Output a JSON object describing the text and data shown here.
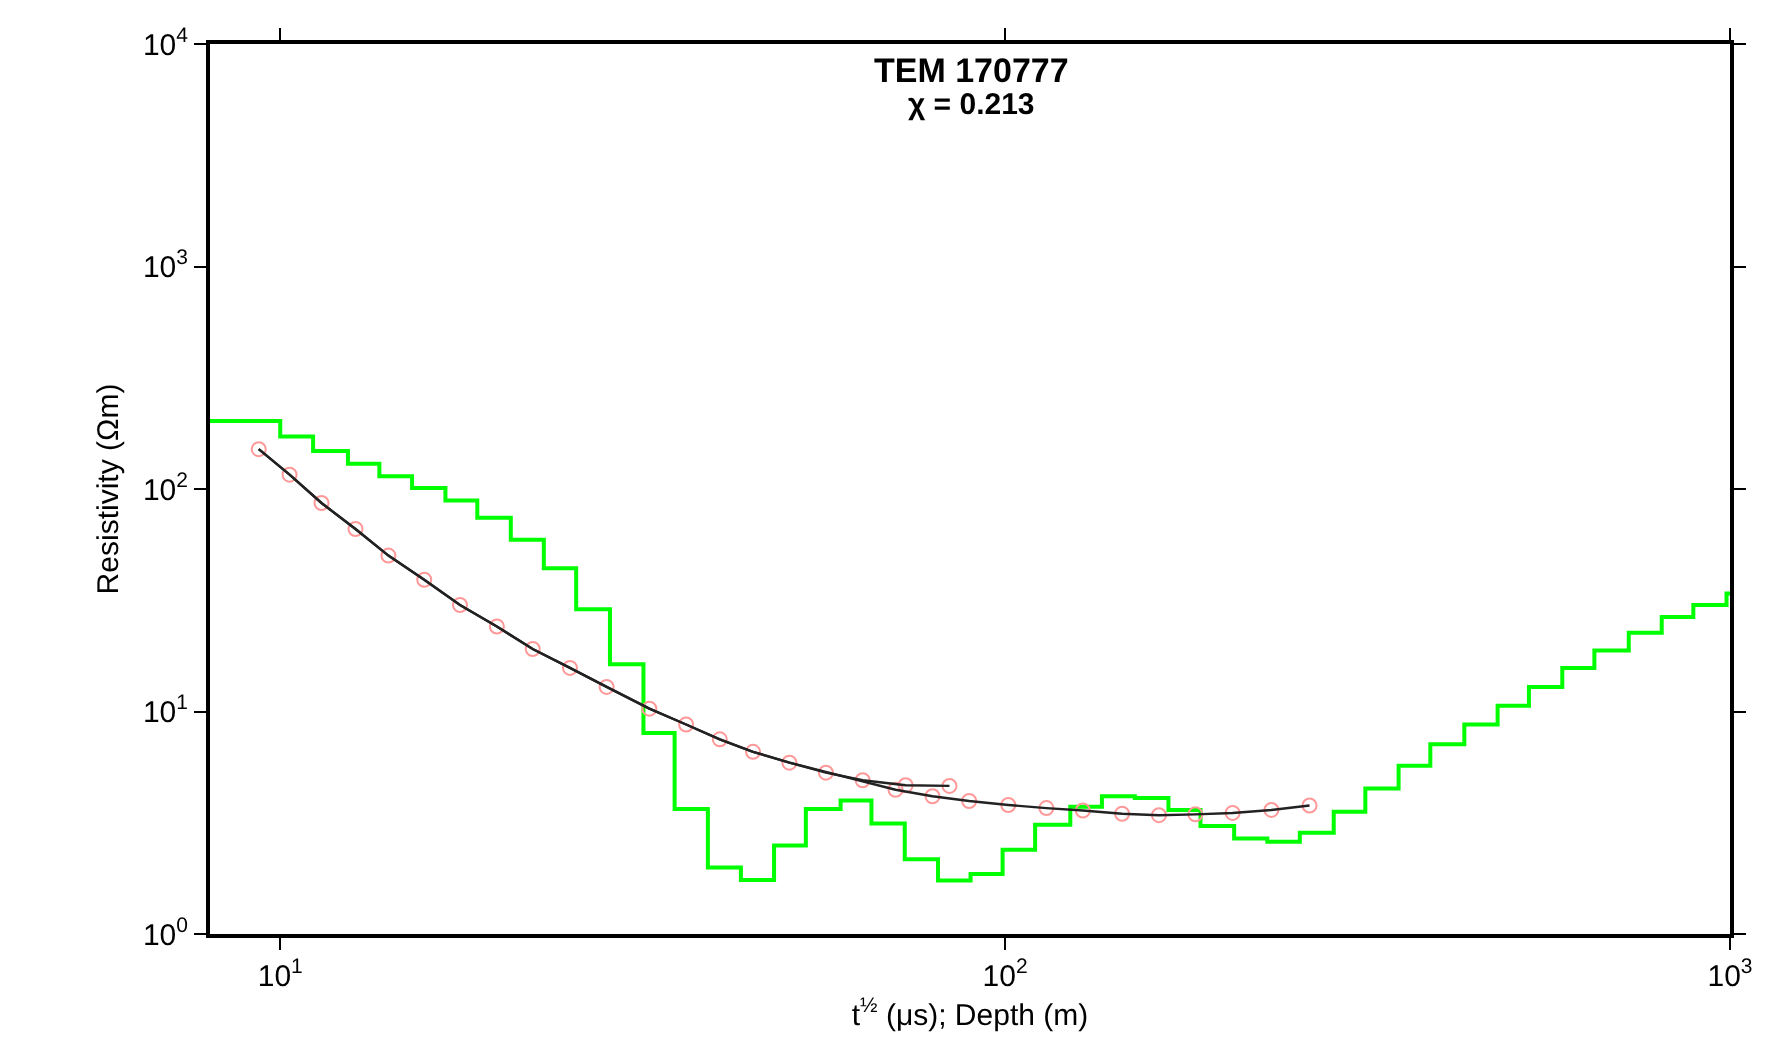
{
  "chart_data": {
    "type": "line",
    "title": "TEM 170777",
    "subtitle": "χ = 0.213",
    "xlabel": "t$^{½}$ (μs); Depth (m)",
    "ylabel": "Resistivity (Ωm)",
    "log": "xy",
    "xlim": [
      8,
      1000
    ],
    "ylim": [
      1,
      10000
    ],
    "xticks": [
      {
        "value": 10,
        "label": "10$^{1}$"
      },
      {
        "value": 100,
        "label": "10$^{2}$"
      },
      {
        "value": 1000,
        "label": "10$^{3}$"
      }
    ],
    "yticks": [
      {
        "value": 1,
        "label": "10$^{0}$"
      },
      {
        "value": 10,
        "label": "10$^{1}$"
      },
      {
        "value": 100,
        "label": "10$^{2}$"
      },
      {
        "value": 1000,
        "label": "10$^{3}$"
      },
      {
        "value": 10000,
        "label": "10$^{4}$"
      }
    ],
    "series": [
      {
        "type": "step",
        "color": "#00ff00",
        "marker": "none",
        "x": [
          8,
          10.0,
          11.1,
          12.4,
          13.7,
          15.2,
          16.9,
          18.7,
          20.8,
          23.1,
          25.6,
          28.5,
          31.7,
          35.0,
          38.9,
          43.2,
          48.0,
          53.1,
          59.3,
          65.4,
          72.7,
          80.8,
          89.6,
          99.2,
          110,
          123,
          136,
          151,
          168,
          186,
          207,
          230,
          255,
          284,
          314,
          349,
          386,
          430,
          478,
          528,
          587,
          650,
          725,
          805,
          890,
          989,
          1000
        ],
        "values": [
          202,
          172,
          148,
          130,
          114,
          101,
          88.7,
          74.3,
          59.1,
          44.0,
          28.8,
          16.3,
          8.0,
          3.65,
          1.99,
          1.75,
          2.5,
          3.65,
          3.98,
          3.14,
          2.17,
          1.74,
          1.86,
          2.39,
          3.1,
          3.73,
          4.16,
          4.08,
          3.61,
          3.06,
          2.69,
          2.6,
          2.85,
          3.54,
          4.51,
          5.7,
          7.13,
          8.73,
          10.6,
          12.9,
          15.7,
          18.8,
          22.6,
          26.6,
          30.1,
          33.9,
          33.9
        ]
      },
      {
        "type": "scatter",
        "color": "#ff9999",
        "marker": "circle",
        "x": [
          9.34,
          10.3,
          11.4,
          12.7,
          14.1,
          15.8,
          17.7,
          19.9,
          22.3,
          25.1,
          28.2,
          32.3,
          36.3,
          40.4,
          44.9,
          50.4,
          56.6,
          63.6,
          72.9,
          83.8,
          70.6,
          79.4,
          89.2,
          101,
          114,
          128,
          145,
          163,
          183,
          206,
          233,
          263
        ],
        "values": [
          151,
          116,
          86.5,
          66.1,
          50.2,
          39.1,
          30.1,
          24.1,
          19.1,
          15.7,
          12.9,
          10.3,
          8.74,
          7.5,
          6.59,
          5.89,
          5.31,
          4.91,
          4.66,
          4.63,
          4.45,
          4.16,
          3.96,
          3.8,
          3.68,
          3.59,
          3.47,
          3.42,
          3.45,
          3.5,
          3.61,
          3.78
        ]
      },
      {
        "color": "#222222",
        "marker": "none",
        "x": [
          9.34,
          10.3,
          11.4,
          12.7,
          14.1,
          15.8,
          17.7,
          19.9,
          22.3,
          25.1,
          28.2,
          32.3,
          36.3,
          40.4,
          44.9,
          50.4,
          56.6,
          63.6,
          72.9,
          83.8
        ],
        "values": [
          151,
          116,
          86.5,
          66.1,
          50.2,
          39.1,
          30.1,
          24.1,
          19.1,
          15.7,
          12.9,
          10.3,
          8.74,
          7.5,
          6.59,
          5.89,
          5.31,
          4.91,
          4.66,
          4.63
        ]
      },
      {
        "color": "#222222",
        "marker": "none",
        "x": [
          9.34,
          10.3,
          11.4,
          12.7,
          14.1,
          15.8,
          17.7,
          19.9,
          22.3,
          25.1,
          28.2,
          32.3,
          36.3,
          40.4,
          44.9,
          50.4,
          70.6,
          79.4,
          89.2,
          101,
          114,
          128,
          145,
          163,
          183,
          206,
          233,
          263
        ],
        "values": [
          151,
          116,
          86.5,
          66.1,
          50.2,
          39.1,
          30.1,
          24.1,
          19.1,
          15.7,
          12.9,
          10.3,
          8.74,
          7.5,
          6.59,
          5.89,
          4.45,
          4.16,
          3.96,
          3.8,
          3.68,
          3.59,
          3.47,
          3.42,
          3.45,
          3.5,
          3.61,
          3.78
        ]
      }
    ]
  }
}
